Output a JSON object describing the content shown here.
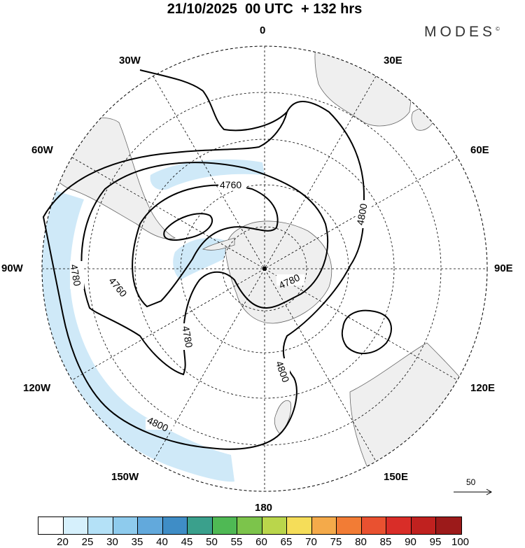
{
  "title": "21/10/2025  00 UTC  + 132 hrs",
  "brand": "MODES",
  "brand_mark": "©",
  "projection": "south polar stereographic",
  "longitude_labels": {
    "lon_0": "0",
    "lon_30e": "30E",
    "lon_60e": "60E",
    "lon_90e": "90E",
    "lon_120e": "120E",
    "lon_150e": "150E",
    "lon_180": "180",
    "lon_150w": "150W",
    "lon_120w": "120W",
    "lon_90w": "90W",
    "lon_60w": "60W",
    "lon_30w": "30W"
  },
  "contour_labels": {
    "c1": "4760",
    "c2": "4760",
    "c3": "4780",
    "c4": "4780",
    "c5": "4780",
    "c6": "4800",
    "c7": "4800",
    "c8": "4800"
  },
  "reference_vector": {
    "value": "50"
  },
  "colorbar": {
    "ticks": [
      "20",
      "25",
      "30",
      "35",
      "40",
      "45",
      "50",
      "55",
      "60",
      "65",
      "70",
      "75",
      "80",
      "85",
      "90",
      "95",
      "100"
    ],
    "colors": [
      "#ffffff",
      "#d6f0fc",
      "#b4e1f7",
      "#8ecbed",
      "#62a9dc",
      "#3f8dc6",
      "#3aa08c",
      "#4fb954",
      "#7cc44b",
      "#bad64b",
      "#f5dd59",
      "#f4aa4a",
      "#f27c35",
      "#e95130",
      "#d92d28",
      "#c0211f",
      "#9c1a1a"
    ]
  },
  "colors": {
    "land": "#efefef",
    "coast": "#666666",
    "contour": "#000000",
    "grid": "#000000",
    "shade": "#cfe9f8"
  }
}
